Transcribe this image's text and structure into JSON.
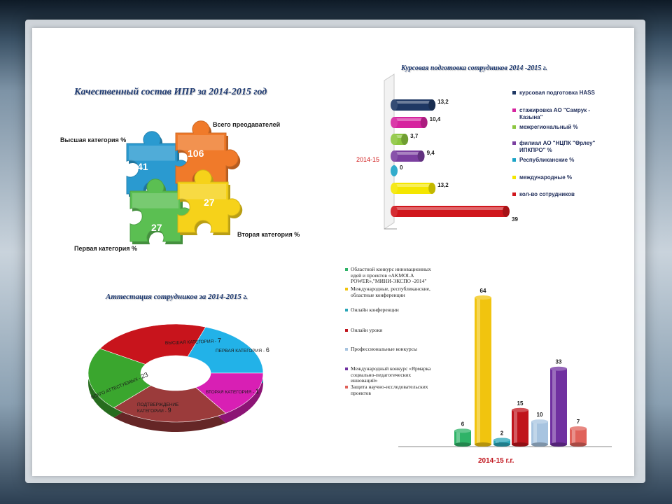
{
  "puzzle": {
    "title": "Качественный состав ИПР за 2014-2015 год",
    "labels": {
      "total": "Всего преодавателей",
      "highest": "Высшая категория %",
      "first": "Первая  категория %",
      "second": "Вторая категория %"
    },
    "values": {
      "highest": "41",
      "total": "106",
      "first": "27",
      "second": "27"
    },
    "colors": {
      "highest": "#2a9ad0",
      "total": "#f07a2a",
      "first": "#5bbf52",
      "second": "#f6d21a"
    }
  },
  "training": {
    "title": "Курсовая подготовка сотрудников 2014 -2015 г.",
    "category_label": "2014-15"
  },
  "attestation": {
    "title": "Аттестация сотрудников за 2014-2015 г."
  },
  "contests": {
    "xlabel": "2014-15 г.г."
  },
  "chart_data": [
    {
      "type": "bar",
      "title": "Курсовая подготовка сотрудников 2014 -2015 г.",
      "categories": [
        "2014-15"
      ],
      "orientation": "horizontal",
      "series": [
        {
          "name": "курсовая подготовка HASS",
          "value": 13.2,
          "label": "13,2",
          "color": "#1f3864"
        },
        {
          "name": "стажировка АО \"Самрук - Казына\"",
          "value": 10.4,
          "label": "10,4",
          "color": "#d6249f"
        },
        {
          "name": "межрегиональный %",
          "value": 3.7,
          "label": "3,7",
          "color": "#8cc63f"
        },
        {
          "name": "филиал АО \"НЦПК \"Өрлеу\" ИПКПРО\" %",
          "value": 9.4,
          "label": "9,4",
          "color": "#7b3fa0"
        },
        {
          "name": "Республиканские %",
          "value": 0,
          "label": "0",
          "color": "#1ba3c6"
        },
        {
          "name": "международные %",
          "value": 13.2,
          "label": "13,2",
          "color": "#f4e600"
        },
        {
          "name": "кол-во сотрудников",
          "value": 39,
          "label": "39",
          "color": "#d0161c"
        }
      ]
    },
    {
      "type": "pie",
      "title": "Аттестация сотрудников за 2014-2015 г.",
      "slices": [
        {
          "label": "ВЫСШАЯ КАТЕГОРИЯ",
          "value": 7,
          "color": "#c8141c"
        },
        {
          "label": "ПЕРВАЯ КАТЕГОРИЯ",
          "value": 6,
          "color": "#22b2e8"
        },
        {
          "label": "ВТОРАЯ КАТЕГОРИЯ",
          "value": 1,
          "color": "#d81fb4"
        },
        {
          "label": "ПОДТВЕРЖДЕНИЕ КАТЕГОРИИ",
          "value": 9,
          "color": "#9b3b3b"
        },
        {
          "label": "ВСЕГО АТТЕСТУЕМЫХ",
          "value": 23,
          "color": "#3aa62e"
        }
      ]
    },
    {
      "type": "bar",
      "categories": [
        "2014-15 г.г."
      ],
      "series": [
        {
          "name": "Областной конкурс инновационных идей и проектов «AKMOLA POWER»,\"МИНИ-ЭКСПО -2014\"",
          "value": 6,
          "color": "#2fb368"
        },
        {
          "name": "Международные, республиканские, областные конференции",
          "value": 64,
          "color": "#f1c40f"
        },
        {
          "name": "Онлайн конференции",
          "value": 2,
          "color": "#2aa6b8"
        },
        {
          "name": "Онлайн уроки",
          "value": 15,
          "color": "#c0141c"
        },
        {
          "name": "Профессиональные конкурсы",
          "value": 10,
          "color": "#a7c4e0"
        },
        {
          "name": "Международный конкурс «Ярмарка социально-педагогических инноваций»",
          "value": 33,
          "color": "#7030a0"
        },
        {
          "name": "Защита научно-исследовательских проектов",
          "value": 7,
          "color": "#e0625a"
        }
      ]
    }
  ]
}
